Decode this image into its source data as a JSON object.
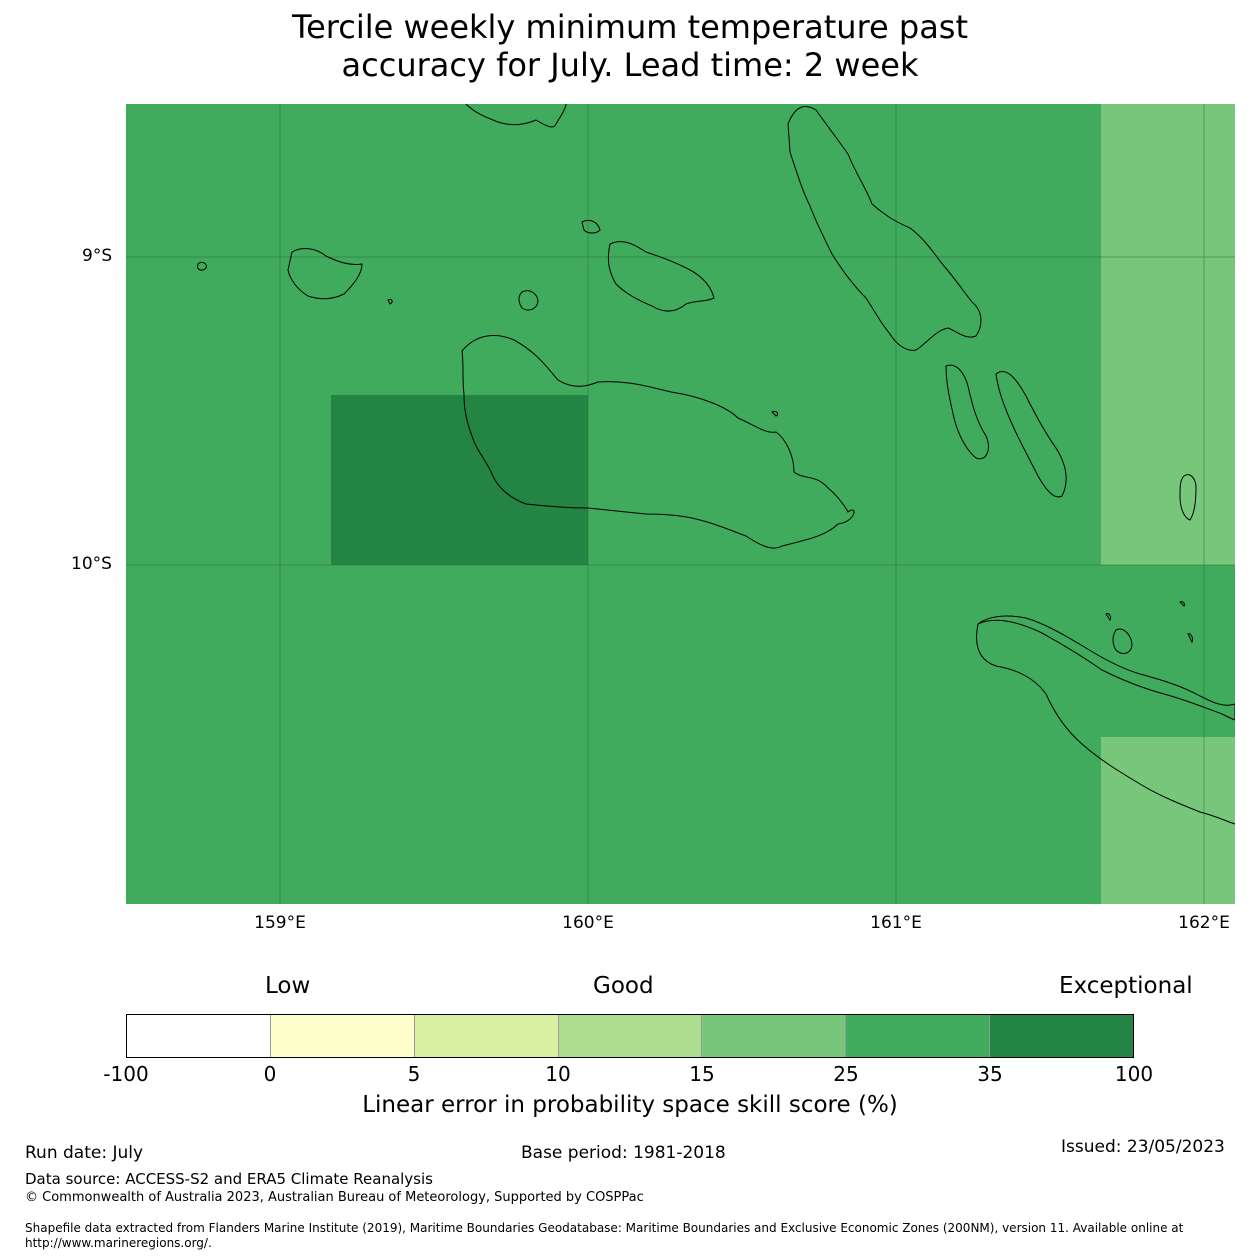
{
  "title_line1": "Tercile weekly minimum temperature past",
  "title_line2": "accuracy for July. Lead time: 2 week",
  "map": {
    "lat_labels": [
      "9°S",
      "10°S"
    ],
    "lon_labels": [
      "159°E",
      "160°E",
      "161°E",
      "162°E"
    ],
    "colors": {
      "band_25_35": "#41ab5d",
      "band_35_100": "#238443",
      "band_15_25": "#78c679",
      "coastline": "#000000"
    },
    "cells": [
      {
        "lon_range": [
          158.5,
          161.67
        ],
        "lat_range": [
          -8.5,
          -11.1
        ],
        "category": "25-35"
      },
      {
        "lon_range": [
          159.17,
          160.0
        ],
        "lat_range": [
          -9.45,
          -10.0
        ],
        "category": "35-100"
      },
      {
        "lon_range": [
          161.67,
          162.1
        ],
        "lat_range": [
          -8.5,
          -10.0
        ],
        "category": "15-25"
      },
      {
        "lon_range": [
          161.67,
          162.1
        ],
        "lat_range": [
          -10.0,
          -10.56
        ],
        "category": "25-35"
      },
      {
        "lon_range": [
          161.67,
          162.1
        ],
        "lat_range": [
          -10.56,
          -11.1
        ],
        "category": "15-25"
      }
    ]
  },
  "legend": {
    "categories": [
      "Low",
      "Good",
      "Exceptional"
    ],
    "ticks": [
      "-100",
      "0",
      "5",
      "10",
      "15",
      "25",
      "35",
      "100"
    ],
    "colors": [
      "#ffffff",
      "#ffffcc",
      "#d9f0a3",
      "#addd8e",
      "#78c679",
      "#41ab5d",
      "#238443"
    ],
    "label": "Linear error in probability space skill score (%)"
  },
  "footer": {
    "run_date": "Run date: July",
    "base_period": "Base period: 1981-2018",
    "issued": "Issued: 23/05/2023",
    "data_source": "Data source: ACCESS-S2 and ERA5 Climate Reanalysis",
    "copyright": "© Commonwealth of Australia 2023, Australian Bureau of Meteorology, Supported by COSPPac",
    "shapefile": "Shapefile data extracted from Flanders Marine Institute (2019), Maritime Boundaries Geodatabase: Maritime Boundaries and Exclusive Economic Zones (200NM), version 11. Available online at",
    "shapefile_url": "http://www.marineregions.org/."
  }
}
